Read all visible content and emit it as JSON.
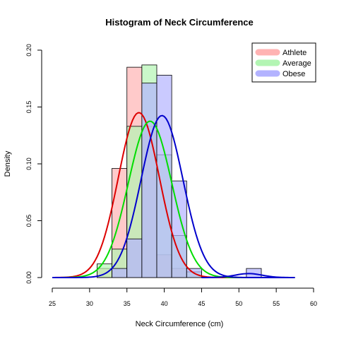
{
  "chart_data": {
    "type": "histogram",
    "title": "Histogram of Neck Circumference",
    "xlabel": "Neck Circumference (cm)",
    "ylabel": "Density",
    "xlim": [
      25,
      60
    ],
    "ylim": [
      0,
      0.2
    ],
    "x_ticks": [
      "25",
      "30",
      "35",
      "40",
      "45",
      "50",
      "55",
      "60"
    ],
    "y_ticks": [
      "0.00",
      "0.05",
      "0.10",
      "0.15",
      "0.20"
    ],
    "legend_position": "top-right",
    "series": [
      {
        "name": "Athlete",
        "fill": "#ffb3b3",
        "curve_color": "#dd0000",
        "bins": [
          [
            31,
            33,
            0.008
          ],
          [
            33,
            35,
            0.096
          ],
          [
            35,
            37,
            0.185
          ],
          [
            37,
            39,
            0.133
          ],
          [
            39,
            41,
            0.02
          ],
          [
            41,
            43,
            0.008
          ]
        ],
        "normal": {
          "mean": 36.6,
          "sd": 2.75
        }
      },
      {
        "name": "Average",
        "fill": "#b3f5b3",
        "curve_color": "#00dd00",
        "bins": [
          [
            31,
            33,
            0.012
          ],
          [
            33,
            35,
            0.025
          ],
          [
            35,
            37,
            0.133
          ],
          [
            37,
            39,
            0.187
          ],
          [
            39,
            41,
            0.108
          ],
          [
            41,
            43,
            0.037
          ],
          [
            43,
            45,
            0.005
          ]
        ],
        "normal": {
          "mean": 38.1,
          "sd": 2.9
        }
      },
      {
        "name": "Obese",
        "fill": "#b3b3ff",
        "curve_color": "#0000cc",
        "bins": [
          [
            33,
            35,
            0.008
          ],
          [
            35,
            37,
            0.034
          ],
          [
            37,
            39,
            0.171
          ],
          [
            39,
            41,
            0.178
          ],
          [
            41,
            43,
            0.085
          ],
          [
            43,
            45,
            0.008
          ],
          [
            51,
            53,
            0.008
          ]
        ],
        "normal": {
          "mean": 39.7,
          "sd": 2.8
        }
      }
    ]
  }
}
